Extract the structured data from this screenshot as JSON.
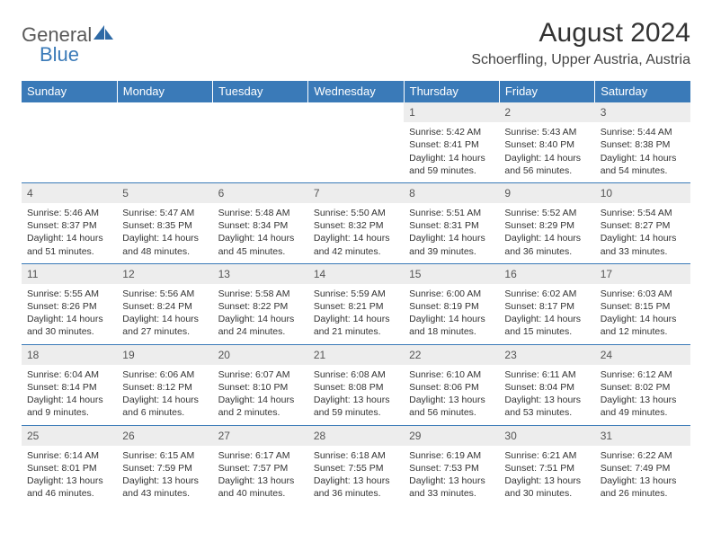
{
  "logo": {
    "text1": "General",
    "text2": "Blue"
  },
  "title": "August 2024",
  "location": "Schoerfling, Upper Austria, Austria",
  "colors": {
    "header_bg": "#3a7ab8",
    "header_text": "#ffffff",
    "daynum_bg": "#ededed",
    "border": "#3a7ab8",
    "logo_gray": "#5a5a5a",
    "logo_blue": "#3a7ab8"
  },
  "weekdays": [
    "Sunday",
    "Monday",
    "Tuesday",
    "Wednesday",
    "Thursday",
    "Friday",
    "Saturday"
  ],
  "weeks": [
    [
      null,
      null,
      null,
      null,
      {
        "n": "1",
        "sr": "5:42 AM",
        "ss": "8:41 PM",
        "dl": "14 hours and 59 minutes."
      },
      {
        "n": "2",
        "sr": "5:43 AM",
        "ss": "8:40 PM",
        "dl": "14 hours and 56 minutes."
      },
      {
        "n": "3",
        "sr": "5:44 AM",
        "ss": "8:38 PM",
        "dl": "14 hours and 54 minutes."
      }
    ],
    [
      {
        "n": "4",
        "sr": "5:46 AM",
        "ss": "8:37 PM",
        "dl": "14 hours and 51 minutes."
      },
      {
        "n": "5",
        "sr": "5:47 AM",
        "ss": "8:35 PM",
        "dl": "14 hours and 48 minutes."
      },
      {
        "n": "6",
        "sr": "5:48 AM",
        "ss": "8:34 PM",
        "dl": "14 hours and 45 minutes."
      },
      {
        "n": "7",
        "sr": "5:50 AM",
        "ss": "8:32 PM",
        "dl": "14 hours and 42 minutes."
      },
      {
        "n": "8",
        "sr": "5:51 AM",
        "ss": "8:31 PM",
        "dl": "14 hours and 39 minutes."
      },
      {
        "n": "9",
        "sr": "5:52 AM",
        "ss": "8:29 PM",
        "dl": "14 hours and 36 minutes."
      },
      {
        "n": "10",
        "sr": "5:54 AM",
        "ss": "8:27 PM",
        "dl": "14 hours and 33 minutes."
      }
    ],
    [
      {
        "n": "11",
        "sr": "5:55 AM",
        "ss": "8:26 PM",
        "dl": "14 hours and 30 minutes."
      },
      {
        "n": "12",
        "sr": "5:56 AM",
        "ss": "8:24 PM",
        "dl": "14 hours and 27 minutes."
      },
      {
        "n": "13",
        "sr": "5:58 AM",
        "ss": "8:22 PM",
        "dl": "14 hours and 24 minutes."
      },
      {
        "n": "14",
        "sr": "5:59 AM",
        "ss": "8:21 PM",
        "dl": "14 hours and 21 minutes."
      },
      {
        "n": "15",
        "sr": "6:00 AM",
        "ss": "8:19 PM",
        "dl": "14 hours and 18 minutes."
      },
      {
        "n": "16",
        "sr": "6:02 AM",
        "ss": "8:17 PM",
        "dl": "14 hours and 15 minutes."
      },
      {
        "n": "17",
        "sr": "6:03 AM",
        "ss": "8:15 PM",
        "dl": "14 hours and 12 minutes."
      }
    ],
    [
      {
        "n": "18",
        "sr": "6:04 AM",
        "ss": "8:14 PM",
        "dl": "14 hours and 9 minutes."
      },
      {
        "n": "19",
        "sr": "6:06 AM",
        "ss": "8:12 PM",
        "dl": "14 hours and 6 minutes."
      },
      {
        "n": "20",
        "sr": "6:07 AM",
        "ss": "8:10 PM",
        "dl": "14 hours and 2 minutes."
      },
      {
        "n": "21",
        "sr": "6:08 AM",
        "ss": "8:08 PM",
        "dl": "13 hours and 59 minutes."
      },
      {
        "n": "22",
        "sr": "6:10 AM",
        "ss": "8:06 PM",
        "dl": "13 hours and 56 minutes."
      },
      {
        "n": "23",
        "sr": "6:11 AM",
        "ss": "8:04 PM",
        "dl": "13 hours and 53 minutes."
      },
      {
        "n": "24",
        "sr": "6:12 AM",
        "ss": "8:02 PM",
        "dl": "13 hours and 49 minutes."
      }
    ],
    [
      {
        "n": "25",
        "sr": "6:14 AM",
        "ss": "8:01 PM",
        "dl": "13 hours and 46 minutes."
      },
      {
        "n": "26",
        "sr": "6:15 AM",
        "ss": "7:59 PM",
        "dl": "13 hours and 43 minutes."
      },
      {
        "n": "27",
        "sr": "6:17 AM",
        "ss": "7:57 PM",
        "dl": "13 hours and 40 minutes."
      },
      {
        "n": "28",
        "sr": "6:18 AM",
        "ss": "7:55 PM",
        "dl": "13 hours and 36 minutes."
      },
      {
        "n": "29",
        "sr": "6:19 AM",
        "ss": "7:53 PM",
        "dl": "13 hours and 33 minutes."
      },
      {
        "n": "30",
        "sr": "6:21 AM",
        "ss": "7:51 PM",
        "dl": "13 hours and 30 minutes."
      },
      {
        "n": "31",
        "sr": "6:22 AM",
        "ss": "7:49 PM",
        "dl": "13 hours and 26 minutes."
      }
    ]
  ],
  "labels": {
    "sunrise": "Sunrise: ",
    "sunset": "Sunset: ",
    "daylight": "Daylight: "
  }
}
